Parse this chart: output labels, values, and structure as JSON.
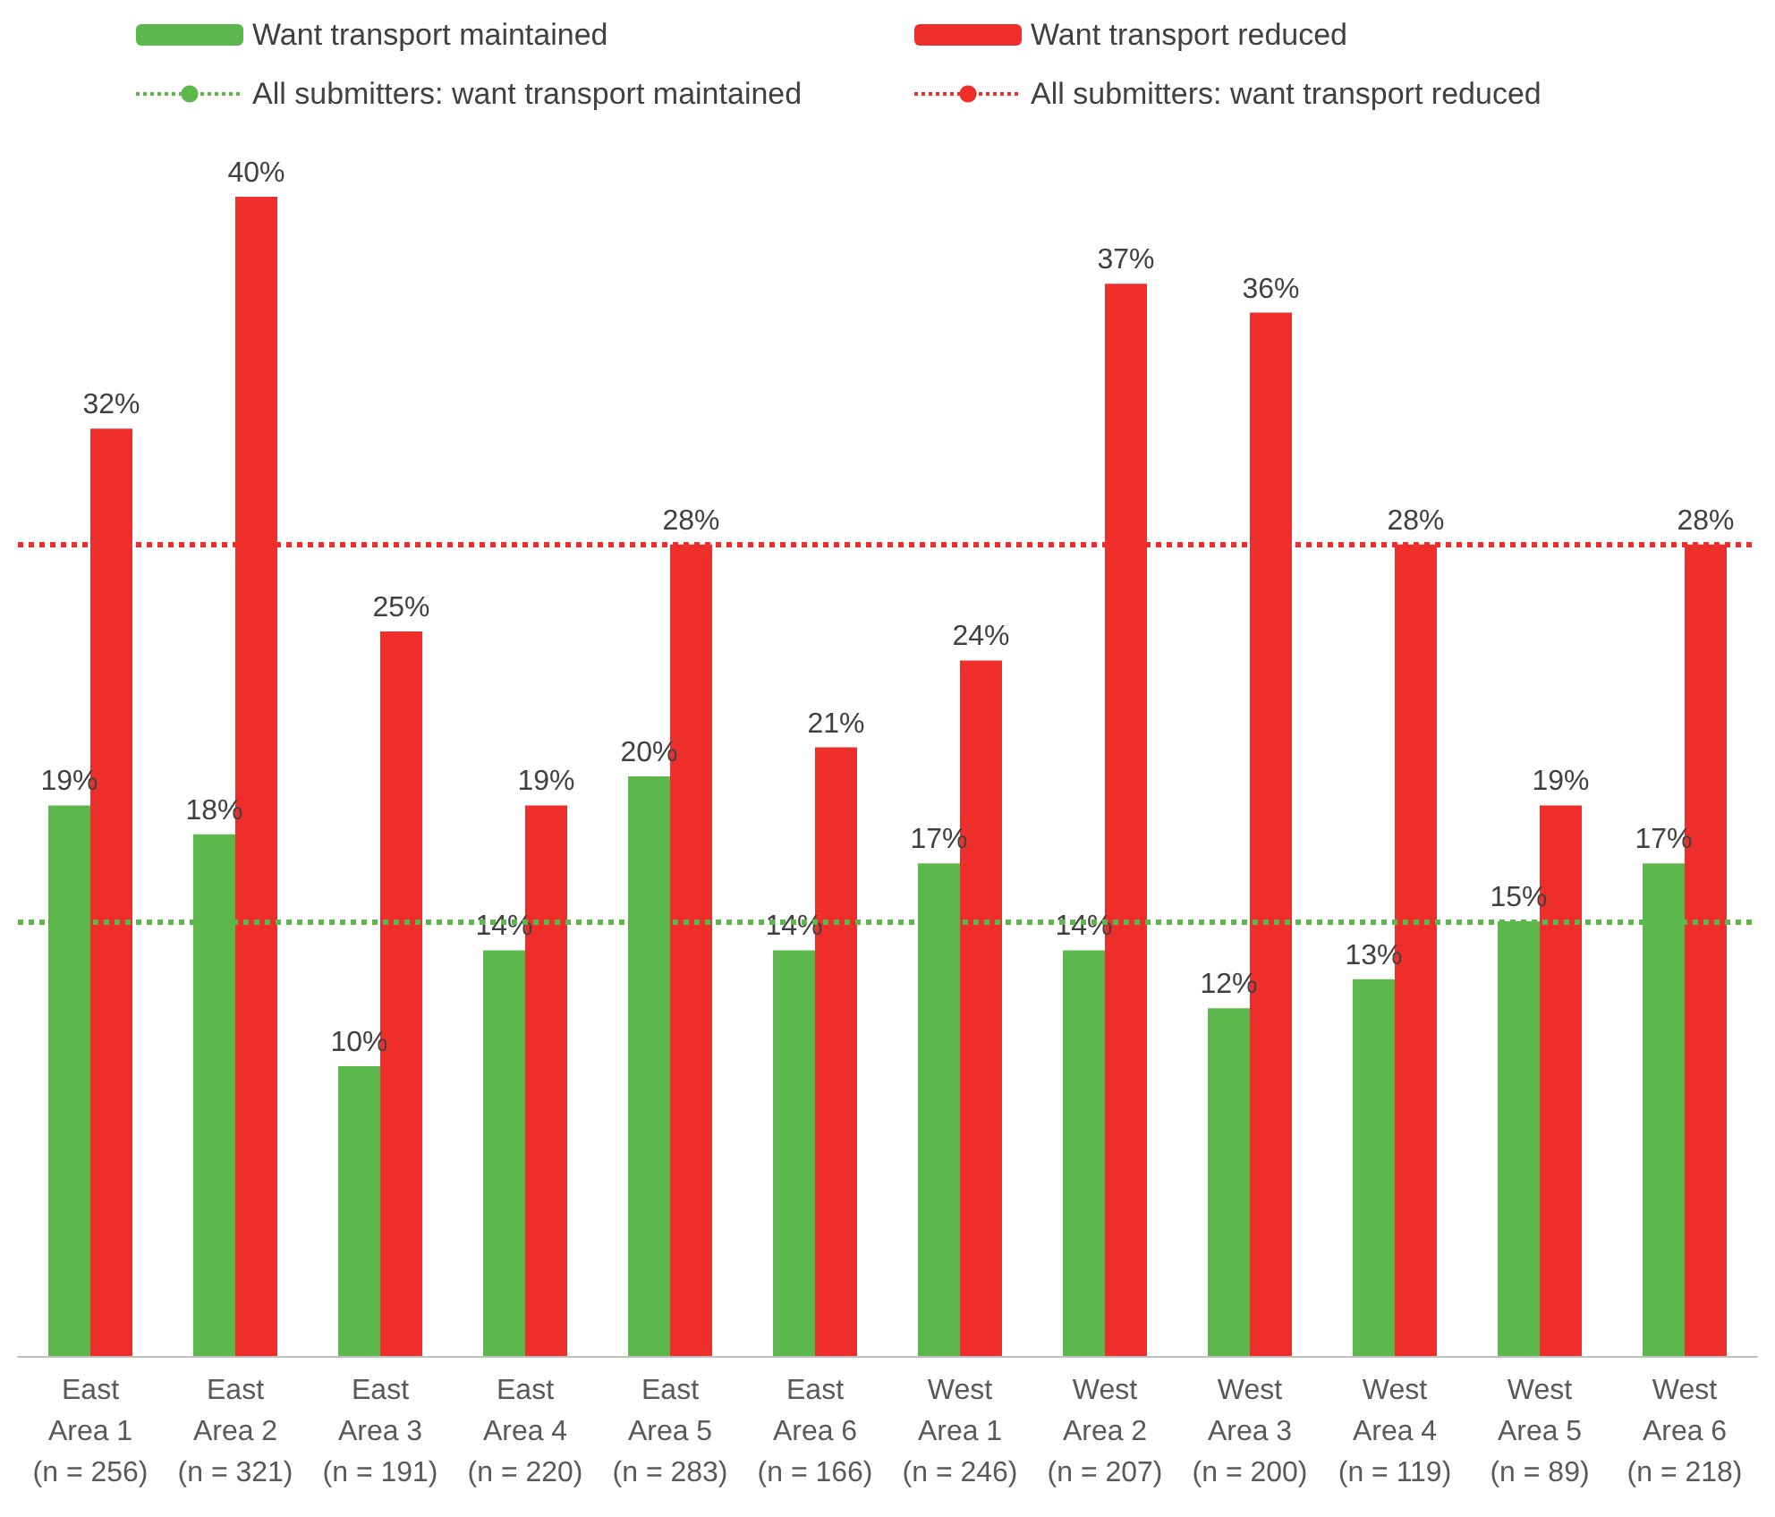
{
  "chart_data": {
    "type": "bar",
    "categories": [
      "East\nArea 1\n(n = 256)",
      "East\nArea 2\n(n = 321)",
      "East\nArea 3\n(n = 191)",
      "East\nArea 4\n(n = 220)",
      "East\nArea 5\n(n = 283)",
      "East\nArea 6\n(n = 166)",
      "West\nArea 1\n(n = 246)",
      "West\nArea 2\n(n = 207)",
      "West\nArea 3\n(n = 200)",
      "West\nArea 4\n(n = 119)",
      "West\nArea 5\n(n = 89)",
      "West\nArea 6\n(n = 218)"
    ],
    "series": [
      {
        "name": "Want transport maintained",
        "color": "#5cb84c",
        "values": [
          19,
          18,
          10,
          14,
          20,
          14,
          17,
          14,
          12,
          13,
          15,
          17
        ],
        "value_labels": [
          "19%",
          "18%",
          "10%",
          "14%",
          "20%",
          "14%",
          "17%",
          "14%",
          "12%",
          "13%",
          "15%",
          "17%"
        ]
      },
      {
        "name": "Want transport reduced",
        "color": "#ee2e2a",
        "values": [
          32,
          40,
          25,
          19,
          28,
          21,
          24,
          37,
          36,
          28,
          19,
          28
        ],
        "value_labels": [
          "32%",
          "40%",
          "25%",
          "19%",
          "28%",
          "21%",
          "24%",
          "37%",
          "36%",
          "28%",
          "19%",
          "28%"
        ]
      }
    ],
    "ref_lines": [
      {
        "axis": "y",
        "value": 15,
        "label": "All submitters: want transport maintained",
        "color": "#5cb84c",
        "line_style": "dotted"
      },
      {
        "axis": "y",
        "value": 28,
        "label": "All submitters: want transport reduced",
        "color": "#ee2e2a",
        "line_style": "dotted"
      }
    ],
    "legend": "top",
    "grid": false
  }
}
